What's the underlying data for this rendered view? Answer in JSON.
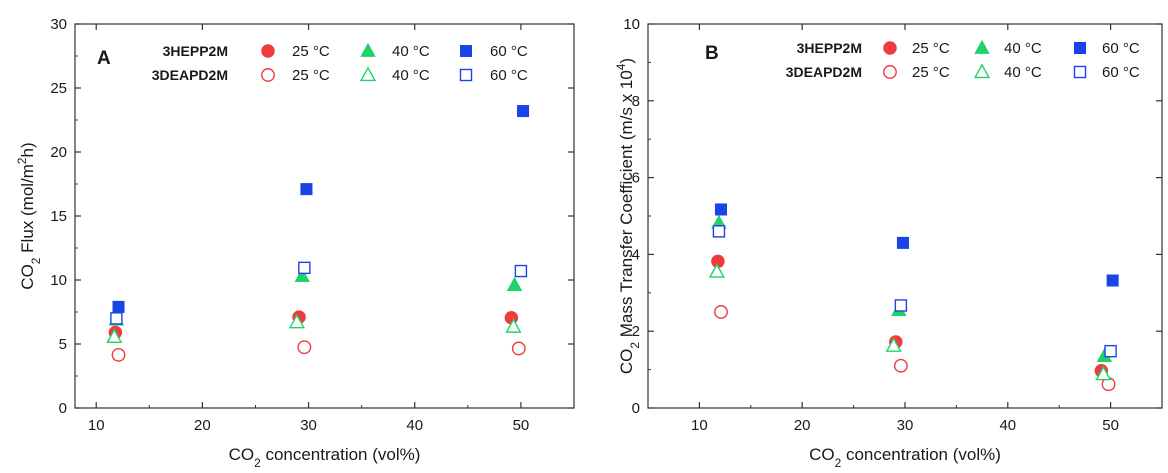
{
  "figure": {
    "colors": {
      "25": "#ee3b3b",
      "40": "#1fd36a",
      "60": "#1a45e6",
      "axis": "#333333"
    }
  },
  "chart_data": [
    {
      "type": "scatter",
      "panel": "A",
      "xlabel": "CO2 concentration (vol%)",
      "ylabel": "CO2 Flux (mol/m2h)",
      "xlim": [
        8,
        55
      ],
      "ylim": [
        0,
        30
      ],
      "xticks": [
        10,
        20,
        30,
        40,
        50
      ],
      "yticks": [
        0,
        5,
        10,
        15,
        20,
        25,
        30
      ],
      "grid": false,
      "legend_position": "top-right",
      "groups": [
        "3HEPP2M",
        "3DEAPD2M"
      ],
      "temperatures": [
        "25 °C",
        "40 °C",
        "60 °C"
      ],
      "series": [
        {
          "name": "3HEPP2M 25 °C",
          "group": "3HEPP2M",
          "temp": "25",
          "marker": "circle",
          "filled": true,
          "points": [
            [
              11.8,
              5.9
            ],
            [
              29.1,
              7.1
            ],
            [
              49.1,
              7.05
            ]
          ]
        },
        {
          "name": "3HEPP2M 40 °C",
          "group": "3HEPP2M",
          "temp": "40",
          "marker": "triangle",
          "filled": true,
          "points": [
            [
              11.9,
              6.9
            ],
            [
              29.4,
              10.3
            ],
            [
              49.4,
              9.6
            ]
          ]
        },
        {
          "name": "3HEPP2M 60 °C",
          "group": "3HEPP2M",
          "temp": "60",
          "marker": "square",
          "filled": true,
          "points": [
            [
              12.1,
              7.9
            ],
            [
              29.8,
              17.1
            ],
            [
              50.2,
              23.2
            ]
          ]
        },
        {
          "name": "3DEAPD2M 25 °C",
          "group": "3DEAPD2M",
          "temp": "25",
          "marker": "circle",
          "filled": false,
          "points": [
            [
              12.1,
              4.15
            ],
            [
              29.6,
              4.75
            ],
            [
              49.8,
              4.65
            ]
          ]
        },
        {
          "name": "3DEAPD2M 40 °C",
          "group": "3DEAPD2M",
          "temp": "40",
          "marker": "triangle",
          "filled": false,
          "points": [
            [
              11.7,
              5.55
            ],
            [
              28.9,
              6.7
            ],
            [
              49.3,
              6.35
            ]
          ]
        },
        {
          "name": "3DEAPD2M 60 °C",
          "group": "3DEAPD2M",
          "temp": "60",
          "marker": "square",
          "filled": false,
          "points": [
            [
              11.9,
              7.0
            ],
            [
              29.6,
              10.95
            ],
            [
              50.0,
              10.7
            ]
          ]
        }
      ]
    },
    {
      "type": "scatter",
      "panel": "B",
      "xlabel": "CO2 concentration (vol%)",
      "ylabel": "CO2 Mass Transfer Coefficient (m/s x 104)",
      "xlim": [
        5,
        55
      ],
      "ylim": [
        0,
        10
      ],
      "xticks": [
        10,
        20,
        30,
        40,
        50
      ],
      "yticks": [
        0,
        2,
        4,
        6,
        8,
        10
      ],
      "grid": false,
      "legend_position": "top-right",
      "groups": [
        "3HEPP2M",
        "3DEAPD2M"
      ],
      "temperatures": [
        "25 °C",
        "40 °C",
        "60 °C"
      ],
      "series": [
        {
          "name": "3HEPP2M 25 °C",
          "group": "3HEPP2M",
          "temp": "25",
          "marker": "circle",
          "filled": true,
          "points": [
            [
              11.8,
              3.82
            ],
            [
              29.1,
              1.72
            ],
            [
              49.1,
              0.97
            ]
          ]
        },
        {
          "name": "3HEPP2M 40 °C",
          "group": "3HEPP2M",
          "temp": "40",
          "marker": "triangle",
          "filled": true,
          "points": [
            [
              11.9,
              4.82
            ],
            [
              29.4,
              2.55
            ],
            [
              49.4,
              1.35
            ]
          ]
        },
        {
          "name": "3HEPP2M 60 °C",
          "group": "3HEPP2M",
          "temp": "60",
          "marker": "square",
          "filled": true,
          "points": [
            [
              12.1,
              5.17
            ],
            [
              29.8,
              4.3
            ],
            [
              50.2,
              3.32
            ]
          ]
        },
        {
          "name": "3DEAPD2M 25 °C",
          "group": "3DEAPD2M",
          "temp": "25",
          "marker": "circle",
          "filled": false,
          "points": [
            [
              12.1,
              2.5
            ],
            [
              29.6,
              1.1
            ],
            [
              49.8,
              0.62
            ]
          ]
        },
        {
          "name": "3DEAPD2M 40 °C",
          "group": "3DEAPD2M",
          "temp": "40",
          "marker": "triangle",
          "filled": false,
          "points": [
            [
              11.7,
              3.55
            ],
            [
              28.9,
              1.62
            ],
            [
              49.3,
              0.88
            ]
          ]
        },
        {
          "name": "3DEAPD2M 60 °C",
          "group": "3DEAPD2M",
          "temp": "60",
          "marker": "square",
          "filled": false,
          "points": [
            [
              11.9,
              4.6
            ],
            [
              29.6,
              2.67
            ],
            [
              50.0,
              1.48
            ]
          ]
        }
      ]
    }
  ]
}
